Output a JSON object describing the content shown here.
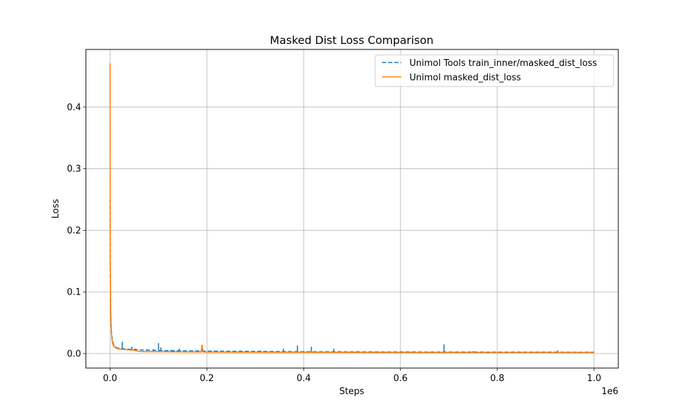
{
  "chart_data": {
    "type": "line",
    "title": "Masked Dist Loss Comparison",
    "xlabel": "Steps",
    "ylabel": "Loss",
    "x_offset_text": "1e6",
    "xlim": [
      -50000,
      1050000
    ],
    "ylim": [
      -0.0235,
      0.4935
    ],
    "x_ticks": [
      0,
      200000,
      400000,
      600000,
      800000,
      1000000
    ],
    "x_tick_labels": [
      "0.0",
      "0.2",
      "0.4",
      "0.6",
      "0.8",
      "1.0"
    ],
    "y_ticks": [
      0.0,
      0.1,
      0.2,
      0.3,
      0.4
    ],
    "y_tick_labels": [
      "0.0",
      "0.1",
      "0.2",
      "0.3",
      "0.4"
    ],
    "grid": true,
    "legend_position": "top-right",
    "series": [
      {
        "name": "Unimol Tools train_inner/masked_dist_loss",
        "color": "#1f77b4",
        "style": "dashed",
        "x": [
          0,
          500,
          1000,
          1500,
          2000,
          3000,
          4000,
          5000,
          7000,
          10000,
          15000,
          20000,
          25000,
          30000,
          40000,
          50000,
          60000,
          80000,
          100000,
          150000,
          200000,
          250000,
          300000,
          400000,
          500000,
          600000,
          700000,
          800000,
          900000,
          1000000
        ],
        "y": [
          0.25,
          0.12,
          0.085,
          0.065,
          0.05,
          0.035,
          0.026,
          0.02,
          0.015,
          0.011,
          0.009,
          0.0085,
          0.008,
          0.0075,
          0.007,
          0.0065,
          0.006,
          0.0055,
          0.005,
          0.0045,
          0.004,
          0.0037,
          0.0035,
          0.003,
          0.0028,
          0.0026,
          0.0025,
          0.0024,
          0.0023,
          0.0022
        ],
        "spikes": [
          {
            "x": 25000,
            "y": 0.019
          },
          {
            "x": 45000,
            "y": 0.011
          },
          {
            "x": 52000,
            "y": 0.008
          },
          {
            "x": 75000,
            "y": 0.007
          },
          {
            "x": 90000,
            "y": 0.007
          },
          {
            "x": 100000,
            "y": 0.017
          },
          {
            "x": 105000,
            "y": 0.01
          },
          {
            "x": 125000,
            "y": 0.006
          },
          {
            "x": 143000,
            "y": 0.008
          },
          {
            "x": 190000,
            "y": 0.012
          },
          {
            "x": 215000,
            "y": 0.005
          },
          {
            "x": 270000,
            "y": 0.005
          },
          {
            "x": 310000,
            "y": 0.005
          },
          {
            "x": 358000,
            "y": 0.008
          },
          {
            "x": 387000,
            "y": 0.013
          },
          {
            "x": 416000,
            "y": 0.011
          },
          {
            "x": 462000,
            "y": 0.008
          },
          {
            "x": 510000,
            "y": 0.004
          },
          {
            "x": 690000,
            "y": 0.015
          },
          {
            "x": 750000,
            "y": 0.004
          },
          {
            "x": 925000,
            "y": 0.005
          }
        ]
      },
      {
        "name": "Unimol masked_dist_loss",
        "color": "#ff7f0e",
        "style": "solid",
        "x": [
          0,
          300,
          600,
          1000,
          1500,
          2000,
          3000,
          4000,
          5000,
          7000,
          10000,
          15000,
          20000,
          30000,
          40000,
          50000,
          60000,
          80000,
          100000,
          150000,
          188000,
          190000,
          192000,
          200000,
          250000,
          300000,
          400000,
          500000,
          600000,
          700000,
          800000,
          900000,
          1000000
        ],
        "y": [
          0.471,
          0.3,
          0.15,
          0.09,
          0.06,
          0.045,
          0.03,
          0.022,
          0.017,
          0.013,
          0.01,
          0.008,
          0.0072,
          0.0065,
          0.006,
          0.0052,
          0.0035,
          0.003,
          0.003,
          0.0028,
          0.0026,
          0.014,
          0.0026,
          0.0025,
          0.0023,
          0.0022,
          0.002,
          0.0019,
          0.0018,
          0.0018,
          0.0017,
          0.0017,
          0.0016
        ]
      }
    ]
  }
}
